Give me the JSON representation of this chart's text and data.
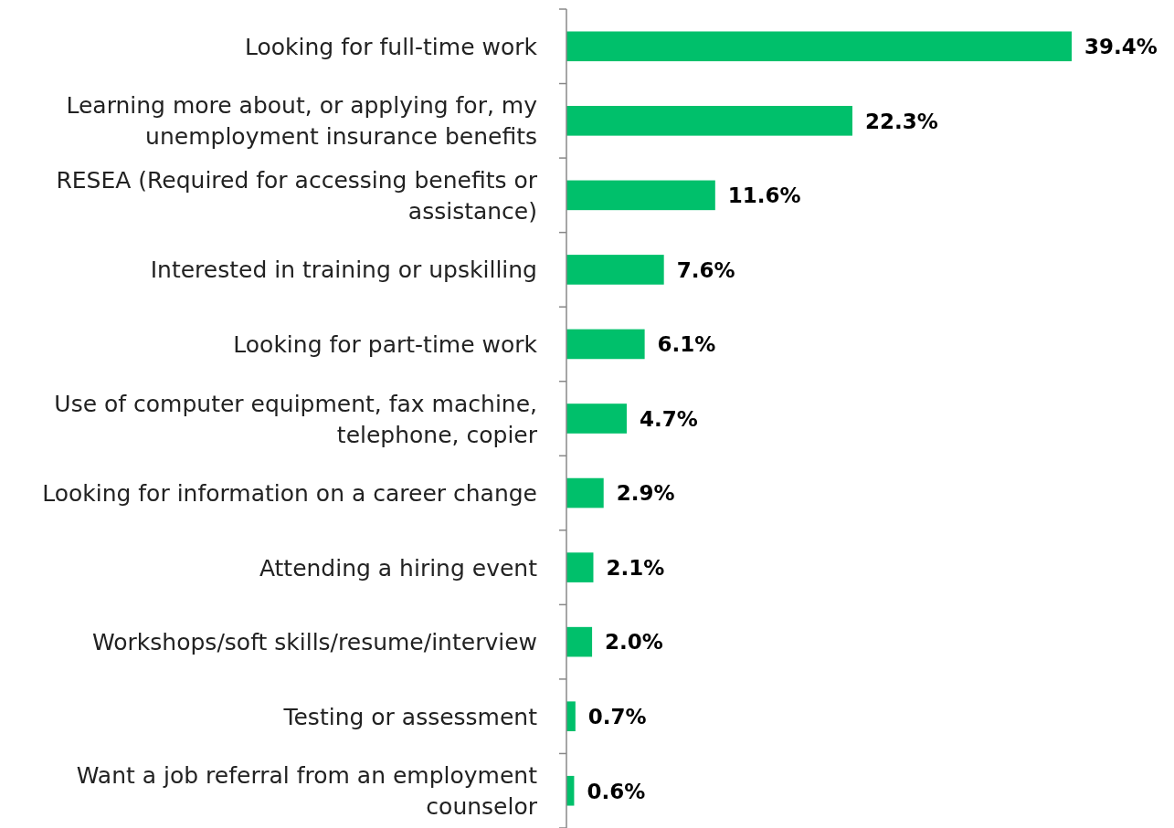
{
  "chart_data": {
    "type": "bar",
    "orientation": "horizontal",
    "categories": [
      "Looking for full-time work",
      "Learning more about, or applying for, my unemployment insurance benefits",
      "RESEA (Required for accessing benefits or assistance)",
      "Interested in training or upskilling",
      "Looking for part-time work",
      "Use of computer equipment, fax machine, telephone, copier",
      "Looking for information on a career change",
      "Attending a hiring event",
      "Workshops/soft skills/resume/interview",
      "Testing or assessment",
      "Want a job referral from an employment counselor"
    ],
    "values": [
      39.4,
      22.3,
      11.6,
      7.6,
      6.1,
      4.7,
      2.9,
      2.1,
      2.0,
      0.7,
      0.6
    ],
    "value_labels": [
      "39.4%",
      "22.3%",
      "11.6%",
      "7.6%",
      "6.1%",
      "4.7%",
      "2.9%",
      "2.1%",
      "2.0%",
      "0.7%",
      "0.6%"
    ],
    "color": "#00c06b",
    "tick_labels": "y"
  }
}
